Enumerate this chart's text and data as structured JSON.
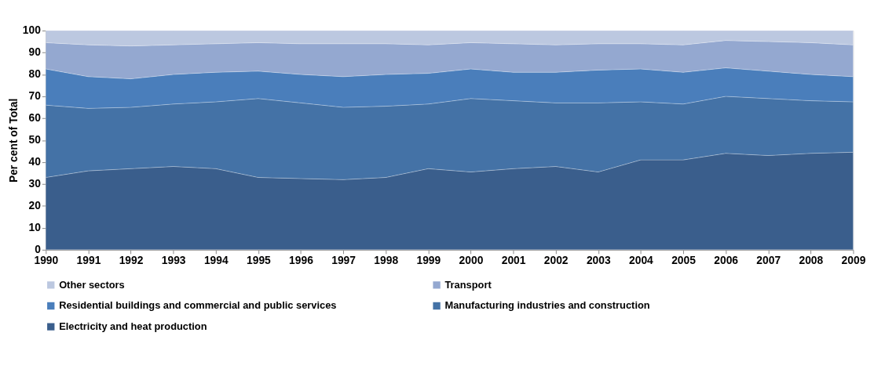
{
  "chart_data": {
    "type": "area",
    "stacked": true,
    "ylabel": "Per cent of Total",
    "categories": [
      "1990",
      "1991",
      "1992",
      "1993",
      "1994",
      "1995",
      "1996",
      "1997",
      "1998",
      "1999",
      "2000",
      "2001",
      "2002",
      "2003",
      "2004",
      "2005",
      "2006",
      "2007",
      "2008",
      "2009"
    ],
    "ylim": [
      0,
      100
    ],
    "yticks": [
      0,
      10,
      20,
      30,
      40,
      50,
      60,
      70,
      80,
      90,
      100
    ],
    "grid": false,
    "legend": "bottom",
    "series": [
      {
        "name": "Electricity and heat production",
        "color": "#3a5e8c",
        "values": [
          33,
          36,
          37,
          38,
          37,
          33,
          32.5,
          32,
          33,
          37,
          35.5,
          37,
          38,
          35.5,
          41,
          41,
          44,
          43,
          44,
          44.5
        ]
      },
      {
        "name": "Manufacturing industries and construction",
        "color": "#4472a6",
        "values": [
          33,
          28.5,
          28,
          28.5,
          30.5,
          36,
          34.5,
          33,
          32.5,
          29.5,
          33.5,
          31,
          29,
          31.5,
          26.5,
          25.5,
          26,
          26,
          24,
          23
        ]
      },
      {
        "name": "Residential buildings and commercial and public services",
        "color": "#4a7ebb",
        "values": [
          16.5,
          14.5,
          13,
          13.5,
          13.5,
          12.5,
          13,
          14,
          14.5,
          14,
          13.5,
          13,
          14,
          15,
          15,
          14.5,
          13,
          12.5,
          12,
          11.5
        ]
      },
      {
        "name": "Transport",
        "color": "#94a8d0",
        "values": [
          12,
          14.5,
          15,
          13.5,
          13,
          13,
          14,
          15,
          14,
          13,
          12,
          13,
          12.5,
          12,
          11.5,
          12.5,
          12.5,
          13.5,
          14.5,
          14.5
        ]
      },
      {
        "name": "Other sectors",
        "color": "#bcc8e0",
        "values": [
          5.5,
          6.5,
          7,
          6.5,
          6,
          5.5,
          6,
          6,
          6,
          6.5,
          5.5,
          6,
          6.5,
          6,
          6,
          6.5,
          4.5,
          5,
          5.5,
          6.5
        ]
      }
    ]
  }
}
